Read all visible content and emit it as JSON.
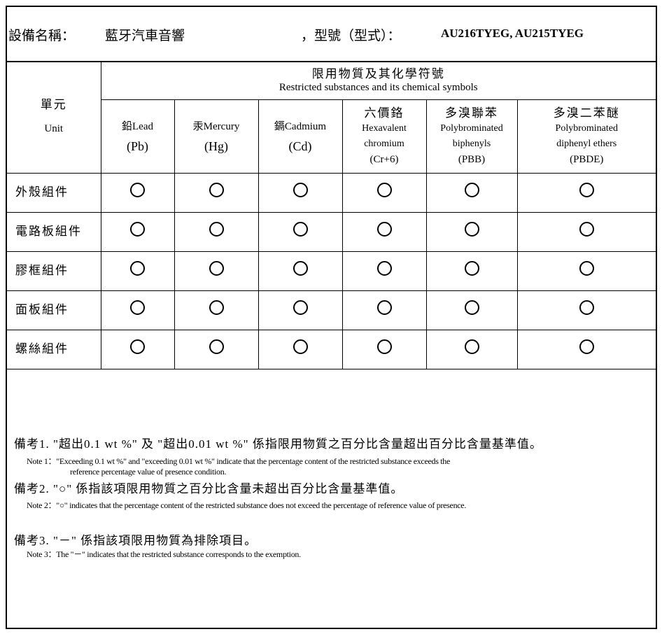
{
  "header": {
    "device_label": "設備名稱：",
    "device_name": "藍牙汽車音響",
    "model_label": "，型號（型式）：",
    "model_value": "AU216TYEG, AU215TYEG"
  },
  "table": {
    "unit_zh": "單元",
    "unit_en": "Unit",
    "group_zh": "限用物質及其化學符號",
    "group_en": "Restricted substances and its chemical symbols",
    "columns": [
      {
        "l1": "鉛Lead",
        "l2": "(Pb)"
      },
      {
        "l1": "汞Mercury",
        "l2": "(Hg)"
      },
      {
        "l1": "鎘Cadmium",
        "l2": "(Cd)"
      },
      {
        "zh": "六價鉻",
        "l1": "Hexavalent",
        "l2": "chromium",
        "l3": "(Cr+6)"
      },
      {
        "zh": "多溴聯苯",
        "l1": "Polybrominated",
        "l2": "biphenyls",
        "l3": "(PBB)"
      },
      {
        "zh": "多溴二苯醚",
        "l1": "Polybrominated",
        "l2": "diphenyl ethers",
        "l3": "(PBDE)"
      }
    ],
    "rows": [
      {
        "unit": "外殼組件",
        "values": [
          "O",
          "O",
          "O",
          "O",
          "O",
          "O"
        ]
      },
      {
        "unit": "電路板組件",
        "values": [
          "O",
          "O",
          "O",
          "O",
          "O",
          "O"
        ]
      },
      {
        "unit": "膠框組件",
        "values": [
          "O",
          "O",
          "O",
          "O",
          "O",
          "O"
        ]
      },
      {
        "unit": "面板組件",
        "values": [
          "O",
          "O",
          "O",
          "O",
          "O",
          "O"
        ]
      },
      {
        "unit": "螺絲組件",
        "values": [
          "O",
          "O",
          "O",
          "O",
          "O",
          "O"
        ]
      }
    ]
  },
  "notes": [
    {
      "zh": "備考1. \"超出0.1 wt %\" 及 \"超出0.01 wt %\" 係指限用物質之百分比含量超出百分比含量基準值。",
      "en": "Note 1：\"Exceeding 0.1 wt %\" and \"exceeding 0.01 wt %\" indicate that the percentage content of the restricted substance exceeds the",
      "en2": "reference percentage value of presence condition."
    },
    {
      "zh": "備考2. \"○\" 係指該項限用物質之百分比含量未超出百分比含量基準值。",
      "en": "Note 2：\"○\" indicates that the percentage content of the restricted substance does not exceed the percentage of reference value of presence."
    },
    {
      "zh": "備考3. \"－\" 係指該項限用物質為排除項目。",
      "en": "Note 3：The \"－\" indicates that the restricted substance corresponds to the exemption."
    }
  ]
}
